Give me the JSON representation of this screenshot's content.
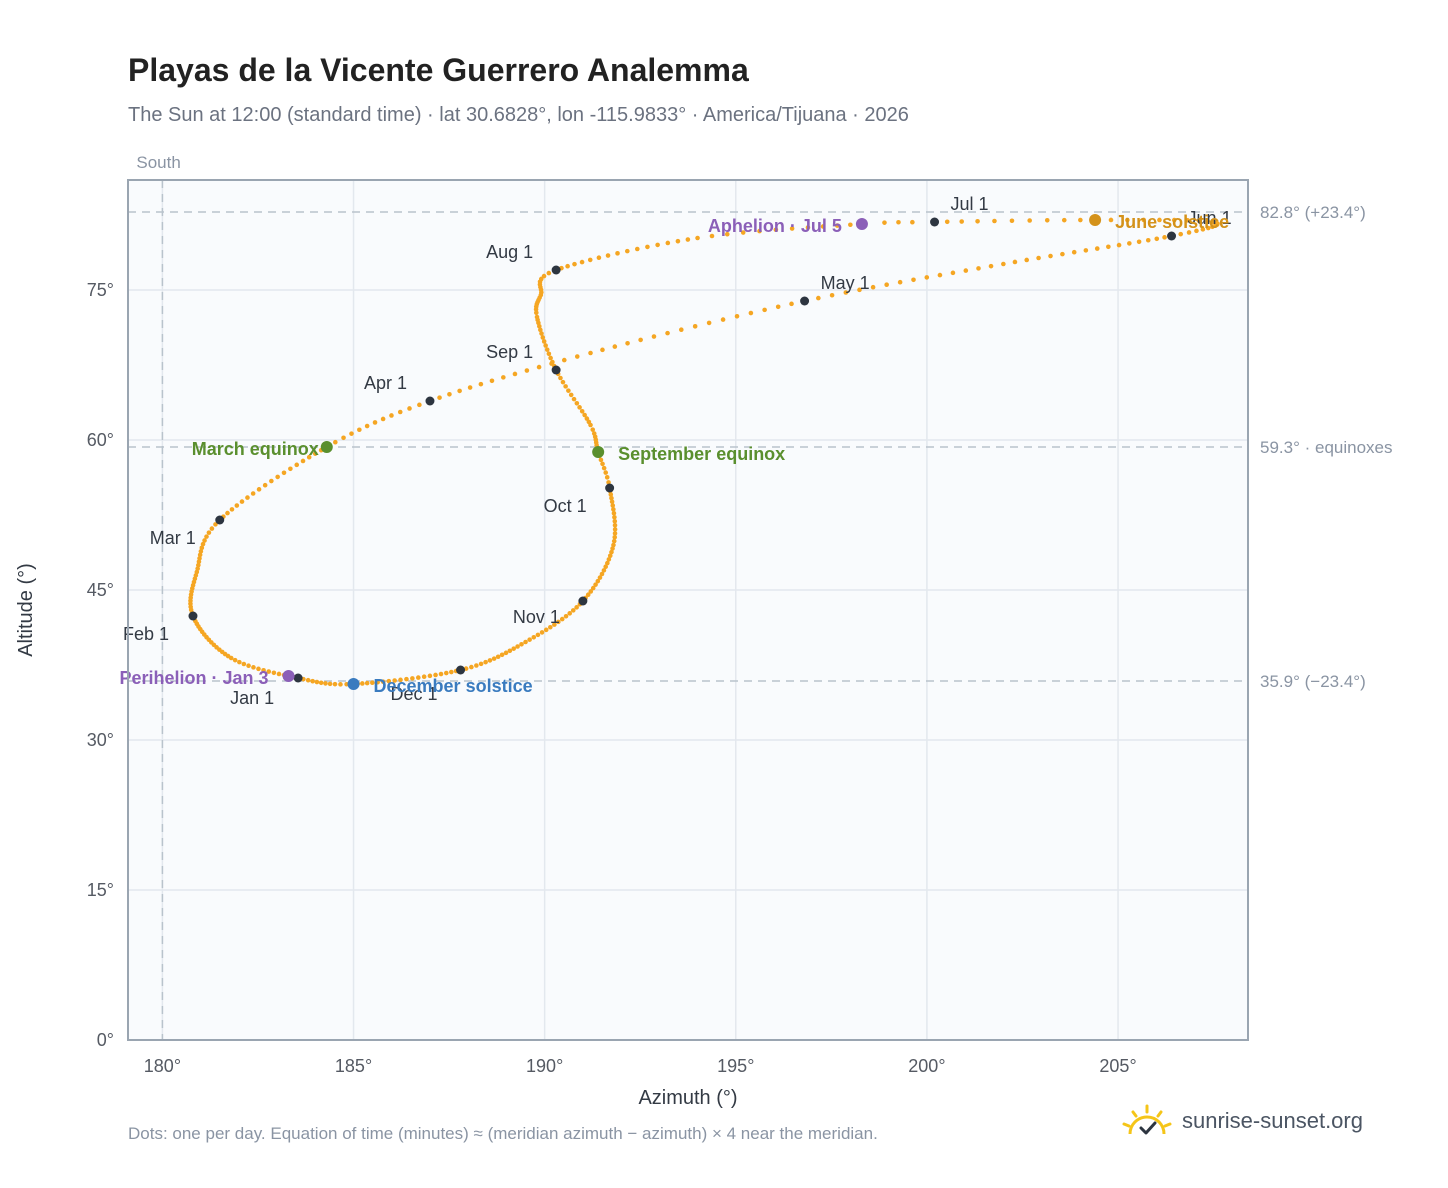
{
  "title": "Playas de la Vicente Guerrero Analemma",
  "subtitle": "The Sun at 12:00 (standard time) · lat 30.6828°, lon -115.9833° · America/Tijuana · 2026",
  "footnote": "Dots: one per day. Equation of time (minutes) ≈ (meridian azimuth − azimuth) × 4 near the meridian.",
  "brand": {
    "text": "sunrise-sunset.org",
    "logo_icon": "sun-logo-icon"
  },
  "colors": {
    "path": "#f5a623",
    "month_dot": "#2d3540",
    "equinox": "#5a8f2e",
    "june_solstice": "#d4921a",
    "december_solstice": "#3a7bbf",
    "apsis": "#8b5fb8",
    "plot_bg": "#f9fbfd",
    "grid": "#e3e8ee",
    "ref_line": "#b9c3cc"
  },
  "chart_data": {
    "type": "scatter",
    "title": "Playas de la Vicente Guerrero Analemma",
    "xlabel": "Azimuth (°)",
    "ylabel": "Altitude (°)",
    "xlim": [
      179.1,
      208.4
    ],
    "ylim": [
      0,
      86
    ],
    "xticks": [
      180,
      185,
      190,
      195,
      200,
      205
    ],
    "xtick_labels": [
      "180°",
      "185°",
      "190°",
      "195°",
      "200°",
      "205°"
    ],
    "yticks": [
      0,
      15,
      30,
      45,
      60,
      75
    ],
    "ytick_labels": [
      "0°",
      "15°",
      "30°",
      "45°",
      "60°",
      "75°"
    ],
    "grid": true,
    "south_label": "South",
    "south_azimuth": 180,
    "reference_lines": [
      {
        "altitude": 82.8,
        "label": "82.8° (+23.4°)"
      },
      {
        "altitude": 59.3,
        "label": "59.3° · equinoxes"
      },
      {
        "altitude": 35.9,
        "label": "35.9° (−23.4°)"
      }
    ],
    "months": [
      {
        "label": "Jan 1",
        "az": 183.55,
        "alt": 36.2
      },
      {
        "label": "Feb 1",
        "az": 180.8,
        "alt": 42.4
      },
      {
        "label": "Mar 1",
        "az": 181.5,
        "alt": 52.0
      },
      {
        "label": "Apr 1",
        "az": 187.0,
        "alt": 63.9
      },
      {
        "label": "May 1",
        "az": 196.8,
        "alt": 73.9
      },
      {
        "label": "Jun 1",
        "az": 206.4,
        "alt": 80.4
      },
      {
        "label": "Jul 1",
        "az": 200.2,
        "alt": 81.8
      },
      {
        "label": "Aug 1",
        "az": 190.3,
        "alt": 77.0
      },
      {
        "label": "Sep 1",
        "az": 190.3,
        "alt": 67.0
      },
      {
        "label": "Oct 1",
        "az": 191.7,
        "alt": 55.2
      },
      {
        "label": "Nov 1",
        "az": 191.0,
        "alt": 43.9
      },
      {
        "label": "Dec 1",
        "az": 187.8,
        "alt": 37.0
      }
    ],
    "events": [
      {
        "label": "March equinox",
        "az": 184.3,
        "alt": 59.3,
        "color": "#5a8f2e"
      },
      {
        "label": "June solstice",
        "az": 204.4,
        "alt": 82.0,
        "color": "#d4921a"
      },
      {
        "label": "September equinox",
        "az": 191.4,
        "alt": 58.8,
        "color": "#5a8f2e"
      },
      {
        "label": "December solstice",
        "az": 185.0,
        "alt": 35.6,
        "color": "#3a7bbf"
      },
      {
        "label": "Perihelion · Jan 3",
        "az": 183.3,
        "alt": 36.4,
        "color": "#8b5fb8"
      },
      {
        "label": "Aphelion · Jul 5",
        "az": 198.3,
        "alt": 81.6,
        "color": "#8b5fb8"
      }
    ],
    "anchors": [
      {
        "day": 1,
        "az": 183.55,
        "alt": 36.2
      },
      {
        "day": 15,
        "az": 181.8,
        "alt": 38.2
      },
      {
        "day": 32,
        "az": 180.8,
        "alt": 42.4
      },
      {
        "day": 46,
        "az": 180.9,
        "alt": 46.8
      },
      {
        "day": 60,
        "az": 181.5,
        "alt": 52.0
      },
      {
        "day": 79,
        "az": 184.3,
        "alt": 59.3
      },
      {
        "day": 91,
        "az": 187.0,
        "alt": 63.9
      },
      {
        "day": 105,
        "az": 191.2,
        "alt": 68.7
      },
      {
        "day": 121,
        "az": 196.8,
        "alt": 73.9
      },
      {
        "day": 136,
        "az": 202.0,
        "alt": 77.6
      },
      {
        "day": 152,
        "az": 206.4,
        "alt": 80.4
      },
      {
        "day": 163,
        "az": 207.5,
        "alt": 81.8
      },
      {
        "day": 172,
        "az": 204.4,
        "alt": 82.0
      },
      {
        "day": 182,
        "az": 200.2,
        "alt": 81.8
      },
      {
        "day": 186,
        "az": 198.3,
        "alt": 81.6
      },
      {
        "day": 197,
        "az": 194.0,
        "alt": 80.2
      },
      {
        "day": 213,
        "az": 190.3,
        "alt": 77.0
      },
      {
        "day": 222,
        "az": 189.9,
        "alt": 74.5
      },
      {
        "day": 230,
        "az": 189.8,
        "alt": 72.3
      },
      {
        "day": 244,
        "az": 190.3,
        "alt": 67.0
      },
      {
        "day": 258,
        "az": 191.2,
        "alt": 61.5
      },
      {
        "day": 266,
        "az": 191.4,
        "alt": 58.8
      },
      {
        "day": 274,
        "az": 191.7,
        "alt": 55.2
      },
      {
        "day": 289,
        "az": 191.8,
        "alt": 49.5
      },
      {
        "day": 305,
        "az": 191.0,
        "alt": 43.9
      },
      {
        "day": 320,
        "az": 189.5,
        "alt": 39.8
      },
      {
        "day": 335,
        "az": 187.8,
        "alt": 37.0
      },
      {
        "day": 355,
        "az": 185.0,
        "alt": 35.6
      },
      {
        "day": 366,
        "az": 183.55,
        "alt": 36.2
      }
    ]
  }
}
